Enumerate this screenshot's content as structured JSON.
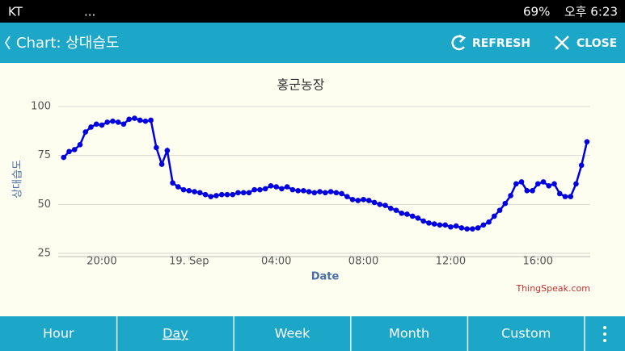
{
  "status": {
    "carrier": "KT",
    "more": "...",
    "battery": "69%",
    "time": "오후 6:23"
  },
  "appbar": {
    "title": "Chart: 상대습도",
    "refresh": "REFRESH",
    "close": "CLOSE"
  },
  "tabs": [
    "Hour",
    "Day",
    "Week",
    "Month",
    "Custom"
  ],
  "chart_data": {
    "type": "line",
    "title": "홍군농장",
    "xlabel": "Date",
    "ylabel": "상대습도",
    "credit": "ThingSpeak.com",
    "x": [
      18.25,
      18.5,
      18.75,
      19,
      19.25,
      19.5,
      19.75,
      20,
      20.25,
      20.5,
      20.75,
      21,
      21.25,
      21.5,
      21.75,
      22,
      22.25,
      22.5,
      22.75,
      23,
      23.25,
      23.5,
      23.75,
      24,
      24.25,
      24.5,
      24.75,
      25,
      25.25,
      25.5,
      25.75,
      26,
      26.25,
      26.5,
      26.75,
      27,
      27.25,
      27.5,
      27.75,
      28,
      28.25,
      28.5,
      28.75,
      29,
      29.25,
      29.5,
      29.75,
      30,
      30.25,
      30.5,
      30.75,
      31,
      31.25,
      31.5,
      31.75,
      32,
      32.25,
      32.5,
      32.75,
      33,
      33.25,
      33.5,
      33.75,
      34,
      34.25,
      34.5,
      34.75,
      35,
      35.25,
      35.5,
      35.75,
      36,
      36.25,
      36.5,
      36.75,
      37,
      37.25,
      37.5,
      37.75,
      38,
      38.25,
      38.5,
      38.75,
      39,
      39.25,
      39.5,
      39.75,
      40,
      40.25,
      40.5,
      40.75,
      41,
      41.25,
      41.5,
      41.75,
      42,
      42.25
    ],
    "series": [
      {
        "name": "상대습도",
        "color": "#0000e0",
        "values": [
          74,
          77,
          78,
          80.5,
          87,
          89.5,
          91,
          90.5,
          92,
          92.5,
          92,
          91,
          93.5,
          94,
          93,
          92.5,
          93,
          79,
          70.5,
          77.5,
          61,
          59,
          57.5,
          57,
          56.5,
          56,
          55,
          54,
          54.5,
          55,
          55,
          55,
          56,
          56,
          56,
          57.5,
          57.5,
          58,
          59.5,
          59,
          58,
          59,
          57.5,
          57,
          57,
          56.5,
          56,
          56.5,
          56,
          56.5,
          56,
          55.5,
          54,
          52.5,
          52,
          52.5,
          52,
          51,
          50,
          49.5,
          48,
          47,
          45.5,
          45,
          44,
          43,
          41.5,
          40.5,
          40,
          39.5,
          39.5,
          38.5,
          39,
          38,
          37.5,
          37.5,
          38,
          39.5,
          41,
          44,
          47,
          50.5,
          54.5,
          60.5,
          61.5,
          57,
          57,
          60.5,
          61.5,
          59.5,
          60.5,
          55.5,
          54,
          54,
          60.5,
          70,
          82
        ]
      }
    ],
    "xlim": [
      18,
      42.4
    ],
    "xticks": [
      {
        "value": 20,
        "label": "20:00"
      },
      {
        "value": 24,
        "label": "19. Sep"
      },
      {
        "value": 28,
        "label": "04:00"
      },
      {
        "value": 32,
        "label": "08:00"
      },
      {
        "value": 36,
        "label": "12:00"
      },
      {
        "value": 40,
        "label": "16:00"
      }
    ],
    "ylim": [
      25,
      100
    ],
    "yticks": [
      25,
      50,
      75,
      100
    ],
    "grid": true
  }
}
